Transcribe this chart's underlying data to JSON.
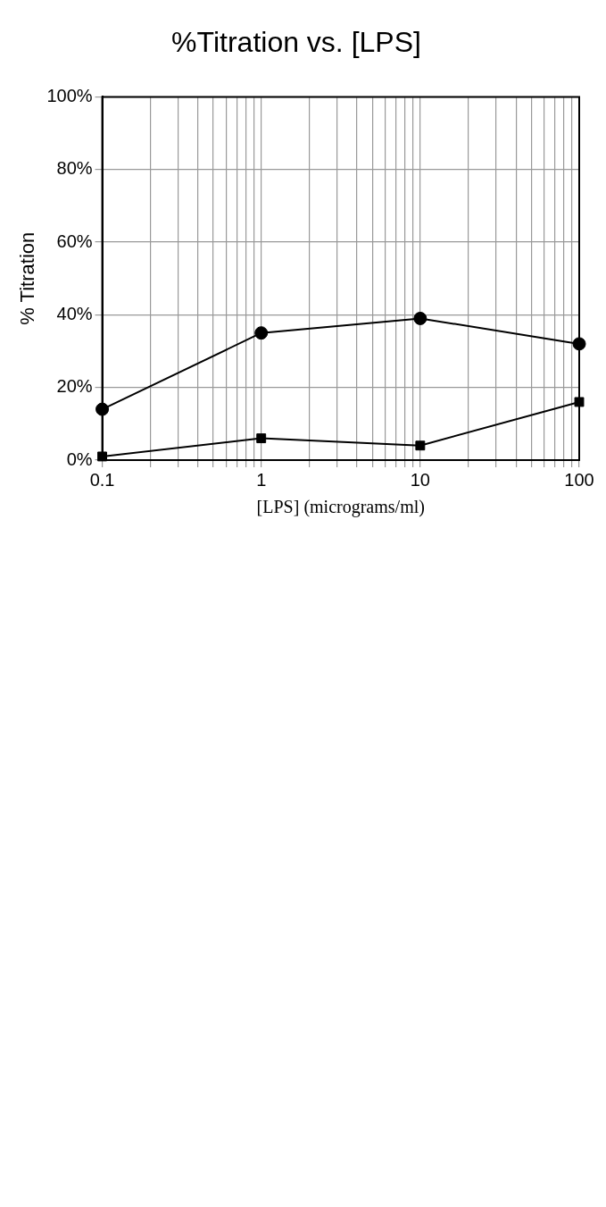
{
  "chart_data": {
    "type": "line",
    "title": "%Titration vs. [LPS]",
    "xlabel": "[LPS] (micrograms/ml)",
    "ylabel": "% Titration",
    "x": [
      0.1,
      1,
      10,
      100
    ],
    "series": [
      {
        "color": "#000000",
        "marker": "circle",
        "values": [
          14,
          35,
          39,
          32
        ]
      },
      {
        "color": "#000000",
        "marker": "square",
        "values": [
          1,
          6,
          4,
          16
        ]
      }
    ],
    "log": "x",
    "xlim": [
      0.1,
      100
    ],
    "xticks": [
      0.1,
      {
        "value": 0.2,
        "label": null
      },
      {
        "value": 0.3,
        "label": null
      },
      {
        "value": 0.4,
        "label": null
      },
      {
        "value": 0.5,
        "label": null
      },
      {
        "value": 0.6,
        "label": null
      },
      {
        "value": 0.7,
        "label": null
      },
      {
        "value": 0.8,
        "label": null
      },
      {
        "value": 0.9,
        "label": null
      },
      1,
      {
        "value": 2,
        "label": null
      },
      {
        "value": 3,
        "label": null
      },
      {
        "value": 4,
        "label": null
      },
      {
        "value": 5,
        "label": null
      },
      {
        "value": 6,
        "label": null
      },
      {
        "value": 7,
        "label": null
      },
      {
        "value": 8,
        "label": null
      },
      {
        "value": 9,
        "label": null
      },
      10,
      {
        "value": 20,
        "label": null
      },
      {
        "value": 30,
        "label": null
      },
      {
        "value": 40,
        "label": null
      },
      {
        "value": 50,
        "label": null
      },
      {
        "value": 60,
        "label": null
      },
      {
        "value": 70,
        "label": null
      },
      {
        "value": 80,
        "label": null
      },
      {
        "value": 90,
        "label": null
      },
      100
    ],
    "ylim": [
      0,
      100
    ],
    "yticks": [
      {
        "value": 0,
        "label": "0%"
      },
      {
        "value": 20,
        "label": "20%"
      },
      {
        "value": 40,
        "label": "40%"
      },
      {
        "value": 60,
        "label": "60%"
      },
      {
        "value": 80,
        "label": "80%"
      },
      {
        "value": 100,
        "label": "100%"
      }
    ],
    "grid": true,
    "legend": false,
    "line_style": "solid"
  }
}
